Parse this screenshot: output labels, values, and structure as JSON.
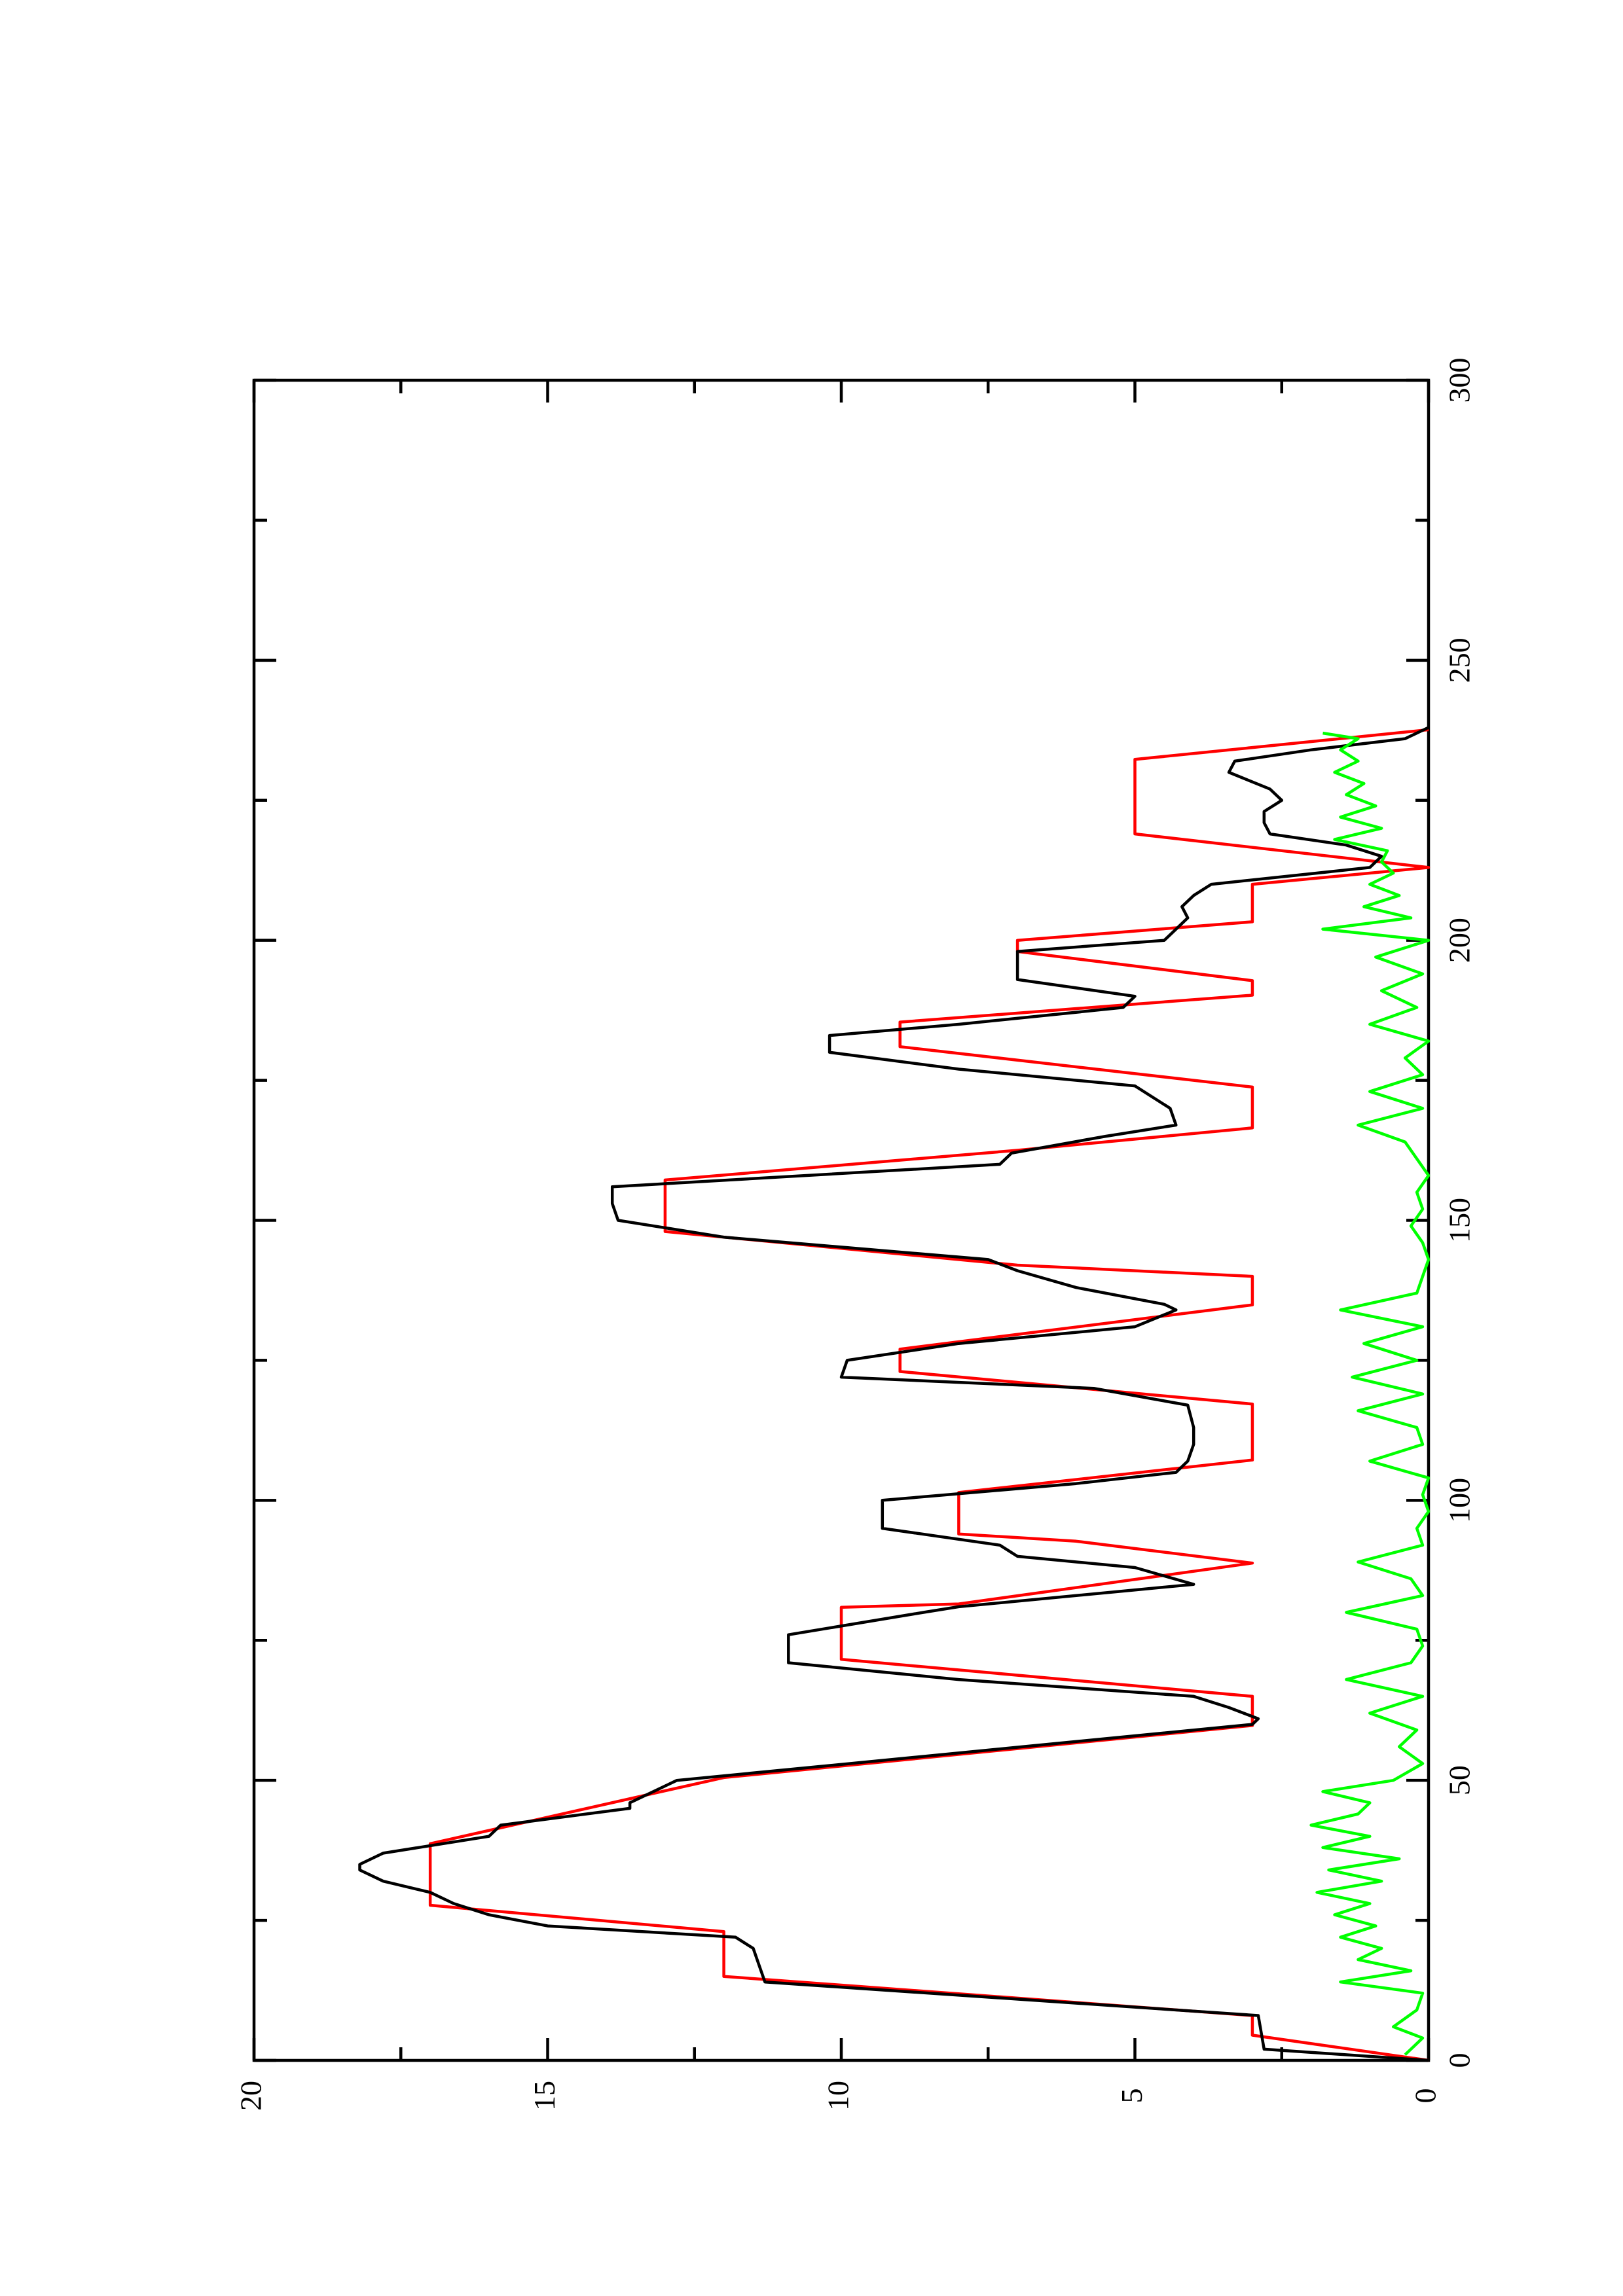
{
  "chart_data": {
    "type": "line",
    "xlim": [
      0,
      300
    ],
    "xticks": [
      0,
      50,
      100,
      150,
      200,
      250,
      300
    ],
    "ylim": [
      0,
      20
    ],
    "yticks": [
      0,
      5,
      10,
      15,
      20
    ],
    "series": [
      {
        "color": "#ff0000",
        "x": [
          0,
          4.5,
          8,
          15,
          23,
          27.7,
          38.7,
          50.5,
          59.8,
          65,
          71.6,
          80.9,
          81.5,
          88.8,
          92.7,
          94,
          101.4,
          107.2,
          117.2,
          123,
          127,
          134.9,
          140,
          142,
          148,
          157.2,
          162.5,
          166.5,
          173.8,
          181,
          185.4,
          190.2,
          192.8,
          198,
          200,
          203.3,
          210,
          213,
          219,
          232.3,
          237.6
        ],
        "values": [
          0,
          3,
          3,
          12,
          12,
          17,
          17,
          12,
          3,
          3,
          10,
          10,
          8,
          3,
          6,
          8,
          8,
          3,
          3,
          9,
          9,
          3,
          3,
          7,
          13,
          13,
          7,
          3,
          3,
          9,
          9,
          3,
          3,
          7,
          7,
          3,
          3,
          0,
          5,
          5,
          0
        ]
      },
      {
        "color": "#000000",
        "x": [
          0,
          2,
          8,
          14,
          17,
          20,
          22,
          24,
          26,
          28,
          30,
          32,
          34,
          35,
          37,
          40,
          42,
          45,
          46,
          50,
          60,
          61,
          63,
          65,
          68,
          71,
          76,
          80,
          81,
          84,
          85,
          88,
          90,
          92,
          95,
          100,
          103,
          105,
          107,
          110,
          113,
          117,
          120,
          122,
          125,
          128,
          131,
          134,
          135,
          138,
          141,
          143,
          147,
          150,
          153,
          156,
          160,
          162,
          165,
          167,
          170,
          174,
          177,
          180,
          183,
          185,
          188,
          190,
          193,
          198,
          200,
          202,
          204,
          206,
          208,
          210,
          213,
          215,
          217,
          219,
          221,
          223,
          225,
          227,
          230,
          232,
          234,
          236,
          238
        ],
        "values": [
          0,
          2.8,
          2.9,
          11.3,
          11.4,
          11.5,
          11.8,
          15,
          16,
          16.6,
          17,
          17.8,
          18.2,
          18.2,
          17.8,
          16,
          15.8,
          13.6,
          13.6,
          12.8,
          3,
          2.9,
          3.4,
          4,
          8,
          10.9,
          10.9,
          8.6,
          8,
          5,
          4,
          5,
          7,
          7.3,
          9.3,
          9.3,
          6,
          4.3,
          4.1,
          4,
          4,
          4.1,
          5.7,
          10,
          9.9,
          8,
          5,
          4.3,
          4.5,
          6,
          7,
          7.5,
          12,
          13.8,
          13.9,
          13.9,
          7.3,
          7.1,
          5.5,
          4.3,
          4.4,
          5,
          8,
          10.2,
          10.2,
          8,
          5.2,
          5,
          7,
          7,
          4.5,
          4.3,
          4.1,
          4.2,
          4,
          3.7,
          1,
          0.8,
          1.4,
          2.7,
          2.8,
          2.8,
          2.5,
          2.7,
          3.4,
          3.3,
          2,
          0.4,
          0
        ]
      },
      {
        "color": "#00ff00",
        "x": [
          1,
          4,
          6,
          9,
          12,
          14,
          16,
          18,
          20,
          22,
          24,
          26,
          28,
          30,
          32,
          34,
          36,
          38,
          40,
          42,
          44,
          46,
          48,
          50,
          53,
          56,
          59,
          62,
          65,
          68,
          71,
          74,
          77,
          80,
          83,
          86,
          89,
          92,
          95,
          98,
          101,
          104,
          107,
          110,
          113,
          116,
          119,
          122,
          125,
          128,
          131,
          134,
          137,
          140,
          143,
          146,
          149,
          152,
          155,
          158,
          161,
          164,
          167,
          170,
          173,
          176,
          179,
          182,
          185,
          188,
          191,
          194,
          197,
          200,
          202,
          204,
          206,
          208,
          210,
          212,
          214,
          216,
          218,
          220,
          222,
          224,
          226,
          228,
          230,
          232,
          234,
          236,
          237
        ],
        "values": [
          0.4,
          0.1,
          0.6,
          0.2,
          0.1,
          1.5,
          0.3,
          1.2,
          0.8,
          1.5,
          0.9,
          1.6,
          1.0,
          1.9,
          0.8,
          1.7,
          0.5,
          1.8,
          1.0,
          2.0,
          1.2,
          1.0,
          1.8,
          0.6,
          0.1,
          0.5,
          0.2,
          1.0,
          0.1,
          1.4,
          0.3,
          0.1,
          0.2,
          1.4,
          0.1,
          0.3,
          1.2,
          0.1,
          0.2,
          0,
          0.1,
          0,
          1.0,
          0.1,
          0.2,
          1.2,
          0.1,
          1.3,
          0.2,
          1.1,
          0.1,
          1.5,
          0.2,
          0.1,
          0,
          0.1,
          0.3,
          0.1,
          0.2,
          0,
          0.2,
          0.4,
          1.2,
          0.1,
          1.0,
          0.1,
          0.4,
          0,
          1.0,
          0.2,
          0.8,
          0.1,
          0.9,
          0,
          1.8,
          0.3,
          1.1,
          0.5,
          1.0,
          0.6,
          0.8,
          0.7,
          1.6,
          0.8,
          1.5,
          0.9,
          1.4,
          1.1,
          1.6,
          1.2,
          1.5,
          1.2,
          1.8
        ]
      }
    ]
  }
}
